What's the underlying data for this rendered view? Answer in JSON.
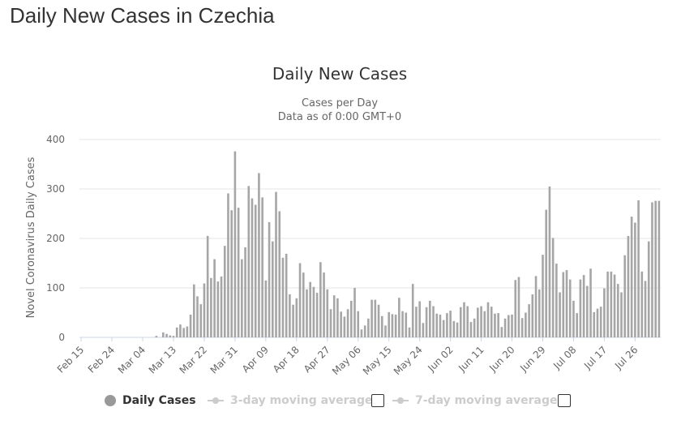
{
  "page_title": "Daily New Cases in Czechia",
  "chart_data": {
    "type": "bar",
    "title": "Daily New Cases",
    "subtitle_lines": [
      "Cases per Day",
      "Data as of 0:00 GMT+0"
    ],
    "ylabel": "Novel Coronavirus Daily Cases",
    "xlabel": "",
    "ylim": [
      0,
      400
    ],
    "yticks": [
      0,
      100,
      200,
      300,
      400
    ],
    "grid": true,
    "legend_position": "bottom",
    "bar_color": "#a6a6a6",
    "x_tick_labels": [
      "Feb 15",
      "Feb 24",
      "Mar 04",
      "Mar 13",
      "Mar 22",
      "Mar 31",
      "Apr 09",
      "Apr 18",
      "Apr 27",
      "May 06",
      "May 15",
      "May 24",
      "Jun 02",
      "Jun 11",
      "Jun 20",
      "Jun 29",
      "Jul 08",
      "Jul 17",
      "Jul 26"
    ],
    "x_tick_every": 9,
    "series": [
      {
        "name": "Daily Cases",
        "values": [
          0,
          0,
          0,
          0,
          0,
          0,
          0,
          0,
          0,
          0,
          0,
          0,
          0,
          0,
          0,
          0,
          0,
          0,
          0,
          0,
          0,
          0,
          3,
          0,
          10,
          7,
          4,
          3,
          20,
          26,
          19,
          22,
          46,
          107,
          83,
          67,
          109,
          205,
          120,
          158,
          113,
          123,
          185,
          291,
          257,
          376,
          262,
          158,
          182,
          306,
          281,
          268,
          332,
          283,
          115,
          233,
          194,
          294,
          255,
          161,
          169,
          87,
          66,
          79,
          150,
          131,
          97,
          112,
          102,
          90,
          152,
          131,
          97,
          57,
          85,
          79,
          52,
          42,
          57,
          74,
          100,
          53,
          16,
          24,
          38,
          76,
          76,
          66,
          43,
          24,
          51,
          47,
          46,
          80,
          53,
          50,
          20,
          108,
          62,
          73,
          29,
          61,
          74,
          63,
          48,
          46,
          35,
          49,
          54,
          33,
          30,
          61,
          71,
          63,
          31,
          38,
          60,
          63,
          53,
          71,
          62,
          48,
          49,
          21,
          38,
          45,
          46,
          116,
          122,
          39,
          50,
          67,
          87,
          124,
          97,
          167,
          258,
          305,
          201,
          149,
          91,
          132,
          136,
          117,
          74,
          49,
          117,
          126,
          104,
          139,
          51,
          58,
          62,
          99,
          133,
          133,
          127,
          108,
          91,
          166,
          205,
          244,
          232,
          277,
          133,
          114,
          194,
          273,
          276,
          276
        ]
      }
    ]
  },
  "legend": {
    "items": [
      {
        "label": "Daily Cases",
        "state": "on"
      },
      {
        "label": "3-day moving average",
        "state": "off"
      },
      {
        "label": "7-day moving average",
        "state": "off"
      }
    ]
  }
}
